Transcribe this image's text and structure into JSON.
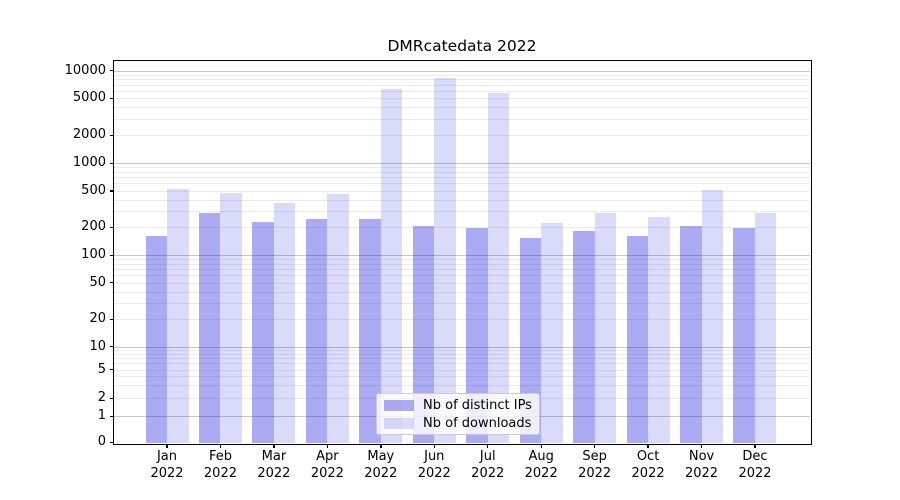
{
  "title": "DMRcatedata 2022",
  "chart_data": {
    "type": "bar",
    "title": "DMRcatedata 2022",
    "yscale": "symlog",
    "grid": true,
    "legend_position": "lower center",
    "ylim": [
      0,
      12700
    ],
    "yticks": [
      0,
      1,
      2,
      5,
      10,
      20,
      50,
      100,
      200,
      500,
      1000,
      2000,
      5000,
      10000
    ],
    "categories": [
      "Jan 2022",
      "Feb 2022",
      "Mar 2022",
      "Apr 2022",
      "May 2022",
      "Jun 2022",
      "Jul 2022",
      "Aug 2022",
      "Sep 2022",
      "Oct 2022",
      "Nov 2022",
      "Dec 2022"
    ],
    "series": [
      {
        "name": "Nb of distinct IPs",
        "color": "rgba(34,34,224,0.38)",
        "values": [
          160,
          285,
          230,
          250,
          245,
          205,
          195,
          155,
          185,
          160,
          205,
          195
        ]
      },
      {
        "name": "Nb of downloads",
        "color": "rgba(34,34,224,0.17)",
        "values": [
          520,
          475,
          370,
          460,
          6300,
          8400,
          5700,
          225,
          290,
          260,
          510,
          285
        ]
      }
    ]
  },
  "colors": {
    "axis": "#000000",
    "grid_major": "#c6c6c6",
    "grid_minor": "#ebebeb",
    "background": "#ffffff",
    "bar_distinct_ips": "rgba(34,34,224,0.38)",
    "bar_downloads": "rgba(34,34,224,0.17)"
  }
}
